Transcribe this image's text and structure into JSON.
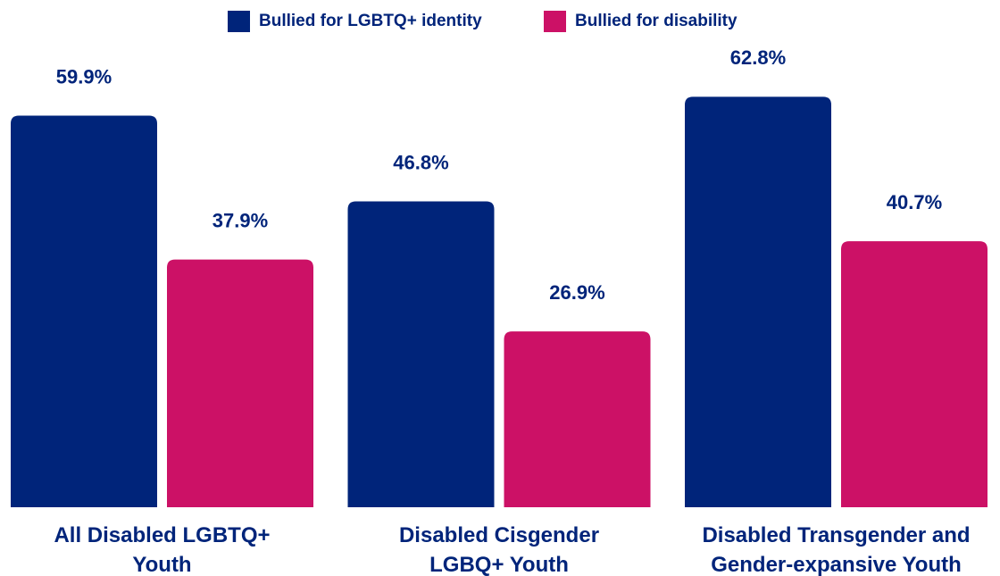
{
  "chart_data": {
    "type": "bar",
    "categories": [
      "All Disabled LGBTQ+ Youth",
      "Disabled Cisgender LGBQ+ Youth",
      "Disabled Transgender and Gender-expansive Youth"
    ],
    "series": [
      {
        "name": "Bullied for LGBTQ+ identity",
        "color": "#00247a",
        "values": [
          59.9,
          46.8,
          62.8
        ],
        "value_labels": [
          "59.9%",
          "46.8%",
          "62.8%"
        ]
      },
      {
        "name": "Bullied for disability",
        "color": "#cc1166",
        "values": [
          37.9,
          26.9,
          40.7
        ],
        "value_labels": [
          "37.9%",
          "26.9%",
          "40.7%"
        ]
      }
    ],
    "ylim": [
      0,
      77.6
    ],
    "legend": "top"
  }
}
